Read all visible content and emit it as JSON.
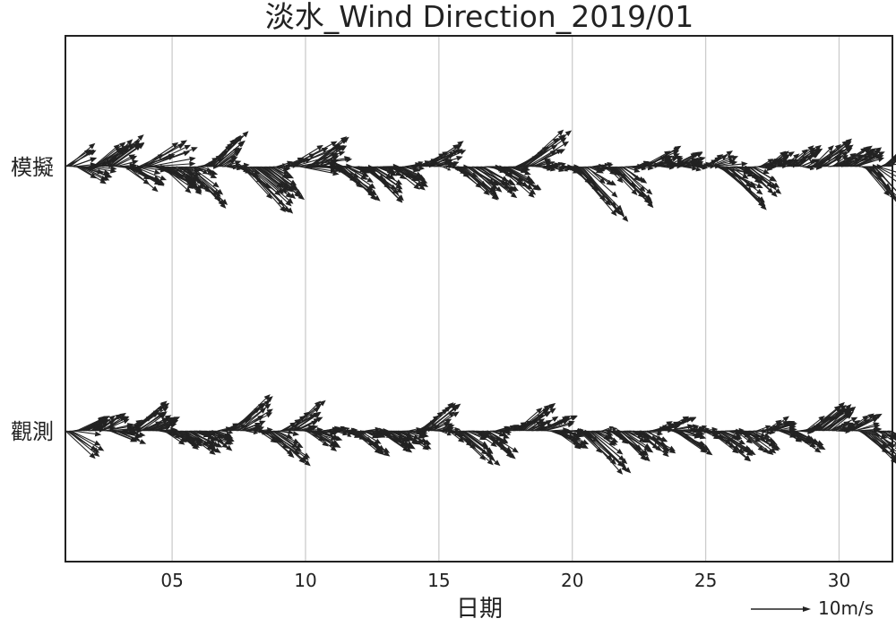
{
  "chart_data": {
    "type": "quiver",
    "title": "淡水_Wind Direction_2019/01",
    "xlabel": "日期",
    "ylabel": "",
    "x_unit": "day of month",
    "xlim": [
      1,
      32
    ],
    "x_ticks": [
      5,
      10,
      15,
      20,
      25,
      30
    ],
    "x_tick_labels": [
      "05",
      "10",
      "15",
      "20",
      "25",
      "30"
    ],
    "grid": {
      "vertical": true,
      "horizontal": false
    },
    "legend": "none",
    "key": {
      "label": "10m/s",
      "value": 10,
      "position": "bottom-right"
    },
    "colors": {
      "arrows": "#222222",
      "grid": "#cccccc",
      "axes": "#222222"
    },
    "series": [
      {
        "name": "模擬",
        "episodes": [
          [
            1.0,
            4,
            3
          ],
          [
            1.6,
            -3,
            3
          ],
          [
            2.1,
            4,
            3
          ],
          [
            2.6,
            5,
            4
          ],
          [
            3.4,
            -4,
            4
          ],
          [
            4.0,
            5,
            5
          ],
          [
            4.3,
            -3,
            4
          ],
          [
            4.8,
            -5,
            4
          ],
          [
            5.5,
            -7,
            5
          ],
          [
            6.5,
            6,
            4
          ],
          [
            7.8,
            -8,
            6
          ],
          [
            8.4,
            -6,
            5
          ],
          [
            9.5,
            6,
            5
          ],
          [
            9.7,
            -4,
            4
          ],
          [
            10.2,
            5,
            4
          ],
          [
            11.3,
            -6,
            5
          ],
          [
            12.3,
            -6,
            5
          ],
          [
            13.3,
            -4,
            4
          ],
          [
            14.5,
            4,
            5
          ],
          [
            15.8,
            -6,
            5
          ],
          [
            16.4,
            -5,
            5
          ],
          [
            17.3,
            -5,
            5
          ],
          [
            18.2,
            6,
            6
          ],
          [
            20.2,
            -10,
            7
          ],
          [
            21.6,
            -7,
            5
          ],
          [
            22.8,
            3,
            4
          ],
          [
            23.8,
            2,
            3
          ],
          [
            25.2,
            3,
            2
          ],
          [
            25.6,
            -8,
            6
          ],
          [
            26.5,
            -5,
            4
          ],
          [
            27.3,
            2,
            2
          ],
          [
            28.2,
            4,
            3
          ],
          [
            29.2,
            5,
            4
          ],
          [
            30.0,
            3,
            3
          ],
          [
            30.5,
            3,
            3
          ],
          [
            31.2,
            -10,
            6
          ],
          [
            31.8,
            12,
            9
          ]
        ]
      },
      {
        "name": "觀測",
        "episodes": [
          [
            1.0,
            -5,
            4
          ],
          [
            1.5,
            3,
            3
          ],
          [
            2.3,
            3,
            3
          ],
          [
            2.8,
            -2,
            3
          ],
          [
            3.5,
            5,
            4
          ],
          [
            4.1,
            3,
            3
          ],
          [
            4.9,
            -3,
            3
          ],
          [
            5.5,
            -4,
            4
          ],
          [
            6.3,
            -3,
            3
          ],
          [
            7.3,
            6,
            5
          ],
          [
            8.6,
            -6,
            5
          ],
          [
            9.4,
            5,
            4
          ],
          [
            10.2,
            -3,
            3
          ],
          [
            11.8,
            -4,
            4
          ],
          [
            12.8,
            -4,
            4
          ],
          [
            13.5,
            -3,
            3
          ],
          [
            14.5,
            5,
            4
          ],
          [
            15.7,
            -6,
            5
          ],
          [
            16.6,
            -5,
            4
          ],
          [
            18.0,
            5,
            4
          ],
          [
            18.8,
            3,
            4
          ],
          [
            19.4,
            -3,
            3
          ],
          [
            20.5,
            -8,
            6
          ],
          [
            21.7,
            -5,
            4
          ],
          [
            22.5,
            -4,
            4
          ],
          [
            23.4,
            3,
            3
          ],
          [
            23.9,
            -4,
            4
          ],
          [
            25.3,
            -5,
            5
          ],
          [
            26.4,
            -4,
            4
          ],
          [
            27.4,
            2,
            2
          ],
          [
            28.1,
            -4,
            4
          ],
          [
            29.0,
            5,
            4
          ],
          [
            29.5,
            4,
            3
          ],
          [
            30.4,
            3,
            3
          ],
          [
            31.0,
            -7,
            5
          ],
          [
            31.7,
            -3,
            3
          ]
        ]
      }
    ]
  }
}
